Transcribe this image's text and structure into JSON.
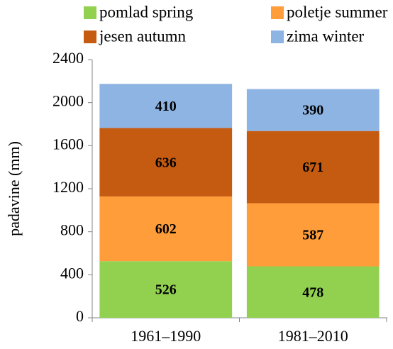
{
  "chart_data": {
    "type": "stacked-bar",
    "y_label": "padavine (mm)",
    "categories": [
      "1961–1990",
      "1981–2010"
    ],
    "series": [
      {
        "name": "pomlad spring",
        "color": "#92d050",
        "values": [
          526,
          478
        ]
      },
      {
        "name": "poletje summer",
        "color": "#ff9d3b",
        "values": [
          602,
          587
        ]
      },
      {
        "name": "jesen autumn",
        "color": "#c55a11",
        "values": [
          636,
          671
        ]
      },
      {
        "name": "zima winter",
        "color": "#8db4e2",
        "values": [
          410,
          390
        ]
      }
    ],
    "ylim": [
      0,
      2400
    ],
    "yticks": [
      0,
      400,
      800,
      1200,
      1600,
      2000,
      2400
    ],
    "legend": "top"
  }
}
